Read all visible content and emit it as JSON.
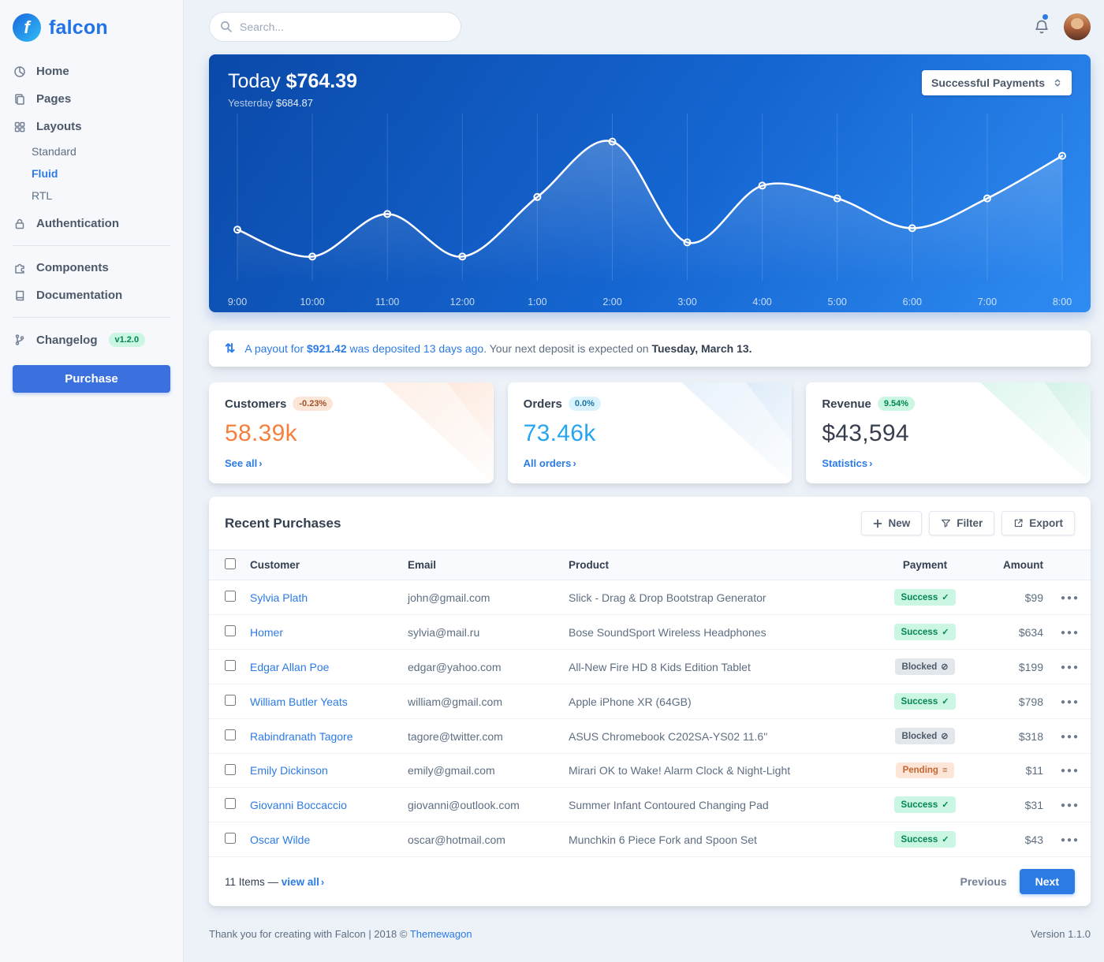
{
  "app": {
    "name": "falcon"
  },
  "sidebar": {
    "items": [
      {
        "label": "Home"
      },
      {
        "label": "Pages"
      },
      {
        "label": "Layouts",
        "children": [
          {
            "label": "Standard"
          },
          {
            "label": "Fluid",
            "active": true
          },
          {
            "label": "RTL"
          }
        ]
      },
      {
        "label": "Authentication"
      },
      {
        "label": "Components"
      },
      {
        "label": "Documentation"
      },
      {
        "label": "Changelog",
        "badge": "v1.2.0"
      }
    ],
    "purchase_label": "Purchase"
  },
  "topbar": {
    "search_placeholder": "Search..."
  },
  "chart_card": {
    "today_label": "Today",
    "today_value": "$764.39",
    "yesterday_label": "Yesterday",
    "yesterday_value": "$684.87",
    "select_value": "Successful Payments"
  },
  "chart_data": {
    "type": "line",
    "x": [
      "9:00",
      "10:00",
      "11:00",
      "12:00",
      "1:00",
      "2:00",
      "3:00",
      "4:00",
      "5:00",
      "6:00",
      "7:00",
      "8:00"
    ],
    "series": [
      {
        "name": "Successful Payments",
        "values": [
          36,
          17,
          47,
          17,
          59,
          98,
          27,
          67,
          58,
          37,
          58,
          88
        ]
      }
    ],
    "ylim": [
      0,
      110
    ],
    "grid": "vertical",
    "line_color": "#ffffff",
    "background_gradient": [
      "#0a49a8",
      "#2f8cf2"
    ],
    "legend": "none"
  },
  "payout": {
    "link_pre": "A payout for",
    "amount": "$921.42",
    "link_post": "was deposited 13 days ago",
    "sep": ".",
    "rest": "Your next deposit is expected on",
    "date": "Tuesday, March 13."
  },
  "stats": [
    {
      "title": "Customers",
      "badge": "-0.23%",
      "badge_style": "warning",
      "value": "58.39k",
      "value_color": "orange",
      "link": "See all"
    },
    {
      "title": "Orders",
      "badge": "0.0%",
      "badge_style": "info",
      "value": "73.46k",
      "value_color": "blue",
      "link": "All orders"
    },
    {
      "title": "Revenue",
      "badge": "9.54%",
      "badge_style": "success",
      "value": "$43,594",
      "value_color": "dark",
      "link": "Statistics"
    }
  ],
  "purchases": {
    "title": "Recent Purchases",
    "buttons": {
      "new": "New",
      "filter": "Filter",
      "export": "Export"
    },
    "columns": [
      "Customer",
      "Email",
      "Product",
      "Payment",
      "Amount"
    ],
    "status_icons": {
      "success": "✓",
      "blocked": "⊘",
      "pending": "≡"
    },
    "rows": [
      {
        "customer": "Sylvia Plath",
        "email": "john@gmail.com",
        "product": "Slick - Drag & Drop Bootstrap Generator",
        "payment": "Success",
        "status": "success",
        "amount": "$99"
      },
      {
        "customer": "Homer",
        "email": "sylvia@mail.ru",
        "product": "Bose SoundSport Wireless Headphones",
        "payment": "Success",
        "status": "success",
        "amount": "$634"
      },
      {
        "customer": "Edgar Allan Poe",
        "email": "edgar@yahoo.com",
        "product": "All-New Fire HD 8 Kids Edition Tablet",
        "payment": "Blocked",
        "status": "blocked",
        "amount": "$199"
      },
      {
        "customer": "William Butler Yeats",
        "email": "william@gmail.com",
        "product": "Apple iPhone XR (64GB)",
        "payment": "Success",
        "status": "success",
        "amount": "$798"
      },
      {
        "customer": "Rabindranath Tagore",
        "email": "tagore@twitter.com",
        "product": "ASUS Chromebook C202SA-YS02 11.6\"",
        "payment": "Blocked",
        "status": "blocked",
        "amount": "$318"
      },
      {
        "customer": "Emily Dickinson",
        "email": "emily@gmail.com",
        "product": "Mirari OK to Wake! Alarm Clock & Night-Light",
        "payment": "Pending",
        "status": "pending",
        "amount": "$11"
      },
      {
        "customer": "Giovanni Boccaccio",
        "email": "giovanni@outlook.com",
        "product": "Summer Infant Contoured Changing Pad",
        "payment": "Success",
        "status": "success",
        "amount": "$31"
      },
      {
        "customer": "Oscar Wilde",
        "email": "oscar@hotmail.com",
        "product": "Munchkin 6 Piece Fork and Spoon Set",
        "payment": "Success",
        "status": "success",
        "amount": "$43"
      }
    ],
    "footer": {
      "items_text": "11 Items —",
      "view_all": "view all",
      "previous": "Previous",
      "next": "Next"
    }
  },
  "footer": {
    "left": "Thank you for creating with Falcon | 2018 ©",
    "link": "Themewagon",
    "version": "Version 1.1.0"
  }
}
